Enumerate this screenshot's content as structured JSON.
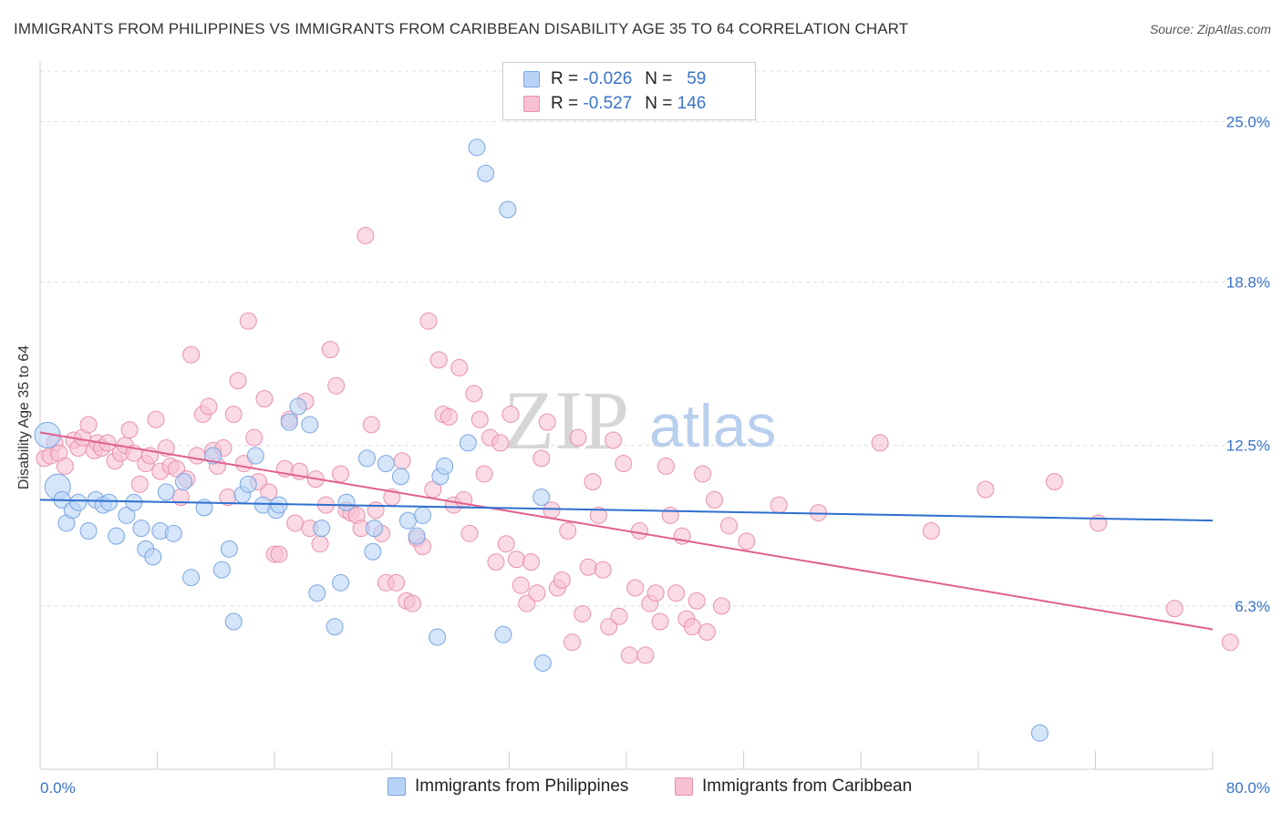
{
  "title": "IMMIGRANTS FROM PHILIPPINES VS IMMIGRANTS FROM CARIBBEAN DISABILITY AGE 35 TO 64 CORRELATION CHART",
  "source": "Source: ZipAtlas.com",
  "watermark": {
    "zip": "ZIP",
    "atlas": "atlas"
  },
  "legend": {
    "rows": [
      {
        "r_label": "R =",
        "r_value": "-0.026",
        "n_label": "N =",
        "n_value": "59"
      },
      {
        "r_label": "R =",
        "r_value": "-0.527",
        "n_label": "N =",
        "n_value": "146"
      }
    ]
  },
  "colors": {
    "blue_fill": "#b9d3f6",
    "blue_stroke": "#7aa6e0",
    "blue_line": "#2f6fcf",
    "pink_fill": "#f7c1d2",
    "pink_stroke": "#e891b0",
    "pink_line": "#e0608f",
    "grid": "#dddddd",
    "axis_label": "#3a73c7"
  },
  "chart_data": {
    "type": "scatter",
    "title": "IMMIGRANTS FROM PHILIPPINES VS IMMIGRANTS FROM CARIBBEAN DISABILITY AGE 35 TO 64 CORRELATION CHART",
    "xlabel": "",
    "ylabel": "Disability Age 35 to 64",
    "xlim": [
      0,
      80
    ],
    "ylim": [
      0,
      27.3
    ],
    "x_tick_labels": [
      "0.0%",
      "80.0%"
    ],
    "y_ticks": [
      6.3,
      12.5,
      18.8,
      25.0
    ],
    "y_tick_labels": [
      "6.3%",
      "12.5%",
      "18.8%",
      "25.0%"
    ],
    "grid": "horizontal dashed",
    "legend_position": "top-center",
    "series": [
      {
        "name": "Immigrants from Philippines",
        "color": "#b9d3f6",
        "trend": {
          "x": [
            0,
            80
          ],
          "y": [
            10.4,
            9.6
          ]
        },
        "points": [
          [
            0.5,
            12.9
          ],
          [
            1.2,
            10.9
          ],
          [
            1.5,
            10.4
          ],
          [
            1.8,
            9.5
          ],
          [
            2.2,
            10.0
          ],
          [
            2.6,
            10.3
          ],
          [
            3.3,
            9.2
          ],
          [
            3.8,
            10.4
          ],
          [
            4.3,
            10.2
          ],
          [
            5.2,
            9.0
          ],
          [
            4.7,
            10.3
          ],
          [
            5.9,
            9.8
          ],
          [
            6.4,
            10.3
          ],
          [
            6.9,
            9.3
          ],
          [
            7.2,
            8.5
          ],
          [
            7.7,
            8.2
          ],
          [
            8.2,
            9.2
          ],
          [
            8.6,
            10.7
          ],
          [
            9.1,
            9.1
          ],
          [
            9.8,
            11.1
          ],
          [
            10.3,
            7.4
          ],
          [
            11.2,
            10.1
          ],
          [
            11.8,
            12.1
          ],
          [
            12.4,
            7.7
          ],
          [
            12.9,
            8.5
          ],
          [
            13.2,
            5.7
          ],
          [
            13.8,
            10.6
          ],
          [
            14.2,
            11.0
          ],
          [
            14.7,
            12.1
          ],
          [
            15.2,
            10.2
          ],
          [
            16.1,
            10.0
          ],
          [
            16.3,
            10.2
          ],
          [
            17.0,
            13.4
          ],
          [
            17.6,
            14.0
          ],
          [
            18.4,
            13.3
          ],
          [
            18.9,
            6.8
          ],
          [
            19.2,
            9.3
          ],
          [
            20.1,
            5.5
          ],
          [
            20.5,
            7.2
          ],
          [
            20.9,
            10.3
          ],
          [
            22.3,
            12.0
          ],
          [
            22.7,
            8.4
          ],
          [
            22.8,
            9.3
          ],
          [
            23.6,
            11.8
          ],
          [
            24.6,
            11.3
          ],
          [
            25.1,
            9.6
          ],
          [
            25.7,
            9.0
          ],
          [
            26.1,
            9.8
          ],
          [
            27.1,
            5.1
          ],
          [
            27.3,
            11.3
          ],
          [
            27.6,
            11.7
          ],
          [
            29.2,
            12.6
          ],
          [
            29.8,
            24.0
          ],
          [
            30.4,
            23.0
          ],
          [
            31.6,
            5.2
          ],
          [
            31.9,
            21.6
          ],
          [
            34.2,
            10.5
          ],
          [
            34.3,
            4.1
          ],
          [
            68.2,
            1.4
          ]
        ]
      },
      {
        "name": "Immigrants from Caribbean",
        "color": "#f7c1d2",
        "trend": {
          "x": [
            0,
            80
          ],
          "y": [
            13.0,
            5.4
          ]
        },
        "points": [
          [
            0.3,
            12.0
          ],
          [
            0.7,
            12.1
          ],
          [
            1.0,
            12.6
          ],
          [
            1.3,
            12.2
          ],
          [
            1.7,
            11.7
          ],
          [
            2.3,
            12.7
          ],
          [
            2.6,
            12.4
          ],
          [
            2.9,
            12.8
          ],
          [
            3.3,
            13.3
          ],
          [
            3.7,
            12.3
          ],
          [
            3.9,
            12.6
          ],
          [
            4.2,
            12.4
          ],
          [
            4.6,
            12.6
          ],
          [
            5.1,
            11.9
          ],
          [
            5.5,
            12.2
          ],
          [
            5.8,
            12.5
          ],
          [
            6.1,
            13.1
          ],
          [
            6.4,
            12.2
          ],
          [
            6.8,
            11.0
          ],
          [
            7.2,
            11.8
          ],
          [
            7.5,
            12.1
          ],
          [
            7.9,
            13.5
          ],
          [
            8.2,
            11.5
          ],
          [
            8.6,
            12.4
          ],
          [
            8.9,
            11.7
          ],
          [
            9.3,
            11.6
          ],
          [
            9.6,
            10.5
          ],
          [
            10.0,
            11.2
          ],
          [
            10.3,
            16.0
          ],
          [
            10.7,
            12.1
          ],
          [
            11.1,
            13.7
          ],
          [
            11.5,
            14.0
          ],
          [
            11.8,
            12.3
          ],
          [
            12.1,
            11.7
          ],
          [
            12.5,
            12.4
          ],
          [
            12.8,
            10.5
          ],
          [
            13.2,
            13.7
          ],
          [
            13.5,
            15.0
          ],
          [
            13.9,
            11.8
          ],
          [
            14.2,
            17.3
          ],
          [
            14.6,
            12.8
          ],
          [
            14.9,
            11.1
          ],
          [
            15.3,
            14.3
          ],
          [
            15.6,
            10.7
          ],
          [
            16.0,
            8.3
          ],
          [
            16.3,
            8.3
          ],
          [
            16.7,
            11.6
          ],
          [
            17.0,
            13.5
          ],
          [
            17.4,
            9.5
          ],
          [
            17.7,
            11.5
          ],
          [
            18.1,
            14.2
          ],
          [
            18.4,
            9.3
          ],
          [
            18.8,
            11.2
          ],
          [
            19.1,
            8.7
          ],
          [
            19.5,
            10.2
          ],
          [
            19.8,
            16.2
          ],
          [
            20.2,
            14.8
          ],
          [
            20.5,
            11.4
          ],
          [
            20.9,
            10.0
          ],
          [
            21.2,
            9.9
          ],
          [
            21.6,
            9.8
          ],
          [
            21.9,
            9.3
          ],
          [
            22.2,
            20.6
          ],
          [
            22.6,
            13.3
          ],
          [
            22.9,
            10.0
          ],
          [
            23.3,
            9.1
          ],
          [
            23.6,
            7.2
          ],
          [
            24.0,
            10.5
          ],
          [
            24.3,
            7.2
          ],
          [
            24.7,
            11.9
          ],
          [
            25.0,
            6.5
          ],
          [
            25.4,
            6.4
          ],
          [
            25.7,
            8.9
          ],
          [
            26.1,
            8.6
          ],
          [
            26.5,
            17.3
          ],
          [
            26.8,
            10.8
          ],
          [
            27.2,
            15.8
          ],
          [
            27.5,
            13.7
          ],
          [
            27.9,
            13.6
          ],
          [
            28.2,
            10.2
          ],
          [
            28.6,
            15.5
          ],
          [
            28.9,
            10.4
          ],
          [
            29.3,
            9.1
          ],
          [
            29.6,
            14.5
          ],
          [
            30.0,
            13.5
          ],
          [
            30.3,
            11.4
          ],
          [
            30.7,
            12.8
          ],
          [
            31.1,
            8.0
          ],
          [
            31.4,
            12.6
          ],
          [
            31.8,
            8.7
          ],
          [
            32.1,
            13.7
          ],
          [
            32.5,
            8.1
          ],
          [
            32.8,
            7.1
          ],
          [
            33.2,
            6.4
          ],
          [
            33.5,
            8.0
          ],
          [
            33.9,
            6.8
          ],
          [
            34.2,
            12.0
          ],
          [
            34.6,
            13.4
          ],
          [
            34.9,
            10.0
          ],
          [
            35.3,
            7.0
          ],
          [
            35.6,
            7.3
          ],
          [
            36.0,
            9.2
          ],
          [
            36.3,
            4.9
          ],
          [
            36.7,
            12.8
          ],
          [
            37.0,
            6.0
          ],
          [
            37.4,
            7.8
          ],
          [
            37.7,
            11.1
          ],
          [
            38.1,
            9.8
          ],
          [
            38.4,
            7.7
          ],
          [
            38.8,
            5.5
          ],
          [
            39.1,
            12.7
          ],
          [
            39.5,
            5.9
          ],
          [
            39.8,
            11.8
          ],
          [
            40.2,
            4.4
          ],
          [
            40.6,
            7.0
          ],
          [
            40.9,
            9.2
          ],
          [
            41.3,
            4.4
          ],
          [
            41.6,
            6.4
          ],
          [
            42.0,
            6.8
          ],
          [
            42.3,
            5.7
          ],
          [
            42.7,
            11.7
          ],
          [
            43.0,
            9.8
          ],
          [
            43.4,
            6.8
          ],
          [
            43.8,
            9.0
          ],
          [
            44.1,
            5.8
          ],
          [
            44.5,
            5.5
          ],
          [
            44.8,
            6.5
          ],
          [
            45.2,
            11.4
          ],
          [
            45.5,
            5.3
          ],
          [
            46.0,
            10.4
          ],
          [
            46.5,
            6.3
          ],
          [
            47.0,
            9.4
          ],
          [
            48.2,
            8.8
          ],
          [
            50.4,
            10.2
          ],
          [
            53.1,
            9.9
          ],
          [
            57.3,
            12.6
          ],
          [
            60.8,
            9.2
          ],
          [
            64.5,
            10.8
          ],
          [
            69.2,
            11.1
          ],
          [
            72.2,
            9.5
          ],
          [
            77.4,
            6.2
          ],
          [
            81.2,
            4.9
          ]
        ]
      }
    ]
  },
  "bottom_legend": [
    {
      "label": "Immigrants from Philippines"
    },
    {
      "label": "Immigrants from Caribbean"
    }
  ]
}
